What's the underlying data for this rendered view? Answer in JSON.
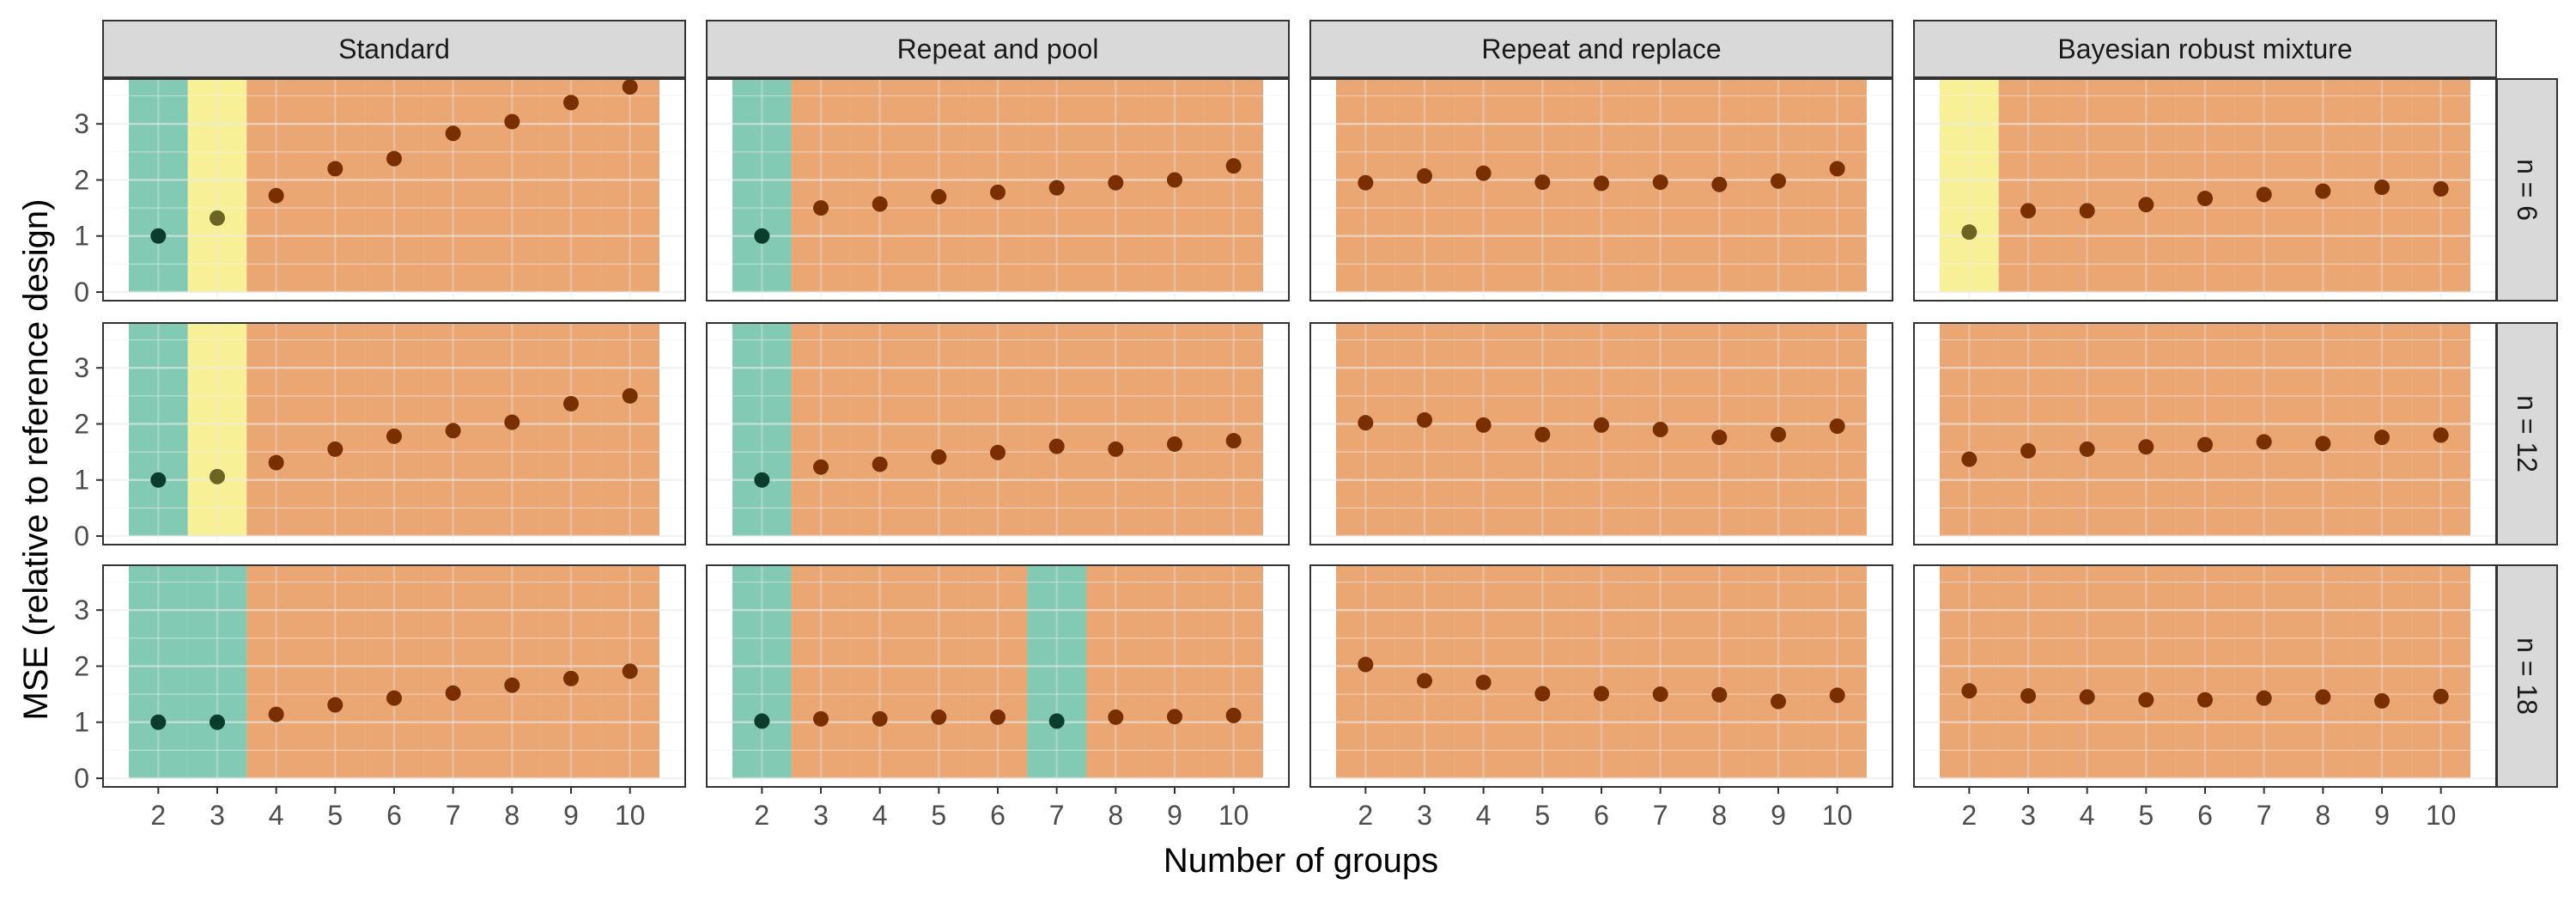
{
  "chart_data": {
    "type": "scatter",
    "xlabel": "Number of groups",
    "ylabel": "MSE (relative to reference design)",
    "xlim": [
      1.5,
      10.5
    ],
    "ylim": [
      0,
      3.8
    ],
    "x_ticks": [
      2,
      3,
      4,
      5,
      6,
      7,
      8,
      9,
      10
    ],
    "y_ticks": [
      0,
      1,
      2,
      3
    ],
    "grid": true,
    "columns": [
      "Standard",
      "Repeat and pool",
      "Repeat and replace",
      "Bayesian robust mixture"
    ],
    "rows": [
      "n = 6",
      "n = 12",
      "n = 18"
    ],
    "category_colors": {
      "green": "#1b9e77",
      "yellow": "#f0e442",
      "orange": "#d95f02"
    },
    "point_color": "#7a2f00",
    "highlight_point_color": "#0a3d2b",
    "panels": [
      {
        "row": 0,
        "col": 0,
        "x": [
          2,
          3,
          4,
          5,
          6,
          7,
          8,
          9,
          10
        ],
        "y": [
          1.0,
          1.32,
          1.72,
          2.2,
          2.38,
          2.83,
          3.04,
          3.38,
          3.66
        ],
        "category": [
          "green",
          "yellow",
          "orange",
          "orange",
          "orange",
          "orange",
          "orange",
          "orange",
          "orange"
        ]
      },
      {
        "row": 0,
        "col": 1,
        "x": [
          2,
          3,
          4,
          5,
          6,
          7,
          8,
          9,
          10
        ],
        "y": [
          1.0,
          1.5,
          1.57,
          1.7,
          1.78,
          1.86,
          1.95,
          2.0,
          2.25
        ],
        "category": [
          "green",
          "orange",
          "orange",
          "orange",
          "orange",
          "orange",
          "orange",
          "orange",
          "orange"
        ]
      },
      {
        "row": 0,
        "col": 2,
        "x": [
          2,
          3,
          4,
          5,
          6,
          7,
          8,
          9,
          10
        ],
        "y": [
          1.95,
          2.07,
          2.12,
          1.96,
          1.94,
          1.96,
          1.92,
          1.98,
          2.2
        ],
        "category": [
          "orange",
          "orange",
          "orange",
          "orange",
          "orange",
          "orange",
          "orange",
          "orange",
          "orange"
        ]
      },
      {
        "row": 0,
        "col": 3,
        "x": [
          2,
          3,
          4,
          5,
          6,
          7,
          8,
          9,
          10
        ],
        "y": [
          1.07,
          1.45,
          1.45,
          1.56,
          1.67,
          1.74,
          1.8,
          1.87,
          1.84
        ],
        "category": [
          "yellow",
          "orange",
          "orange",
          "orange",
          "orange",
          "orange",
          "orange",
          "orange",
          "orange"
        ]
      },
      {
        "row": 1,
        "col": 0,
        "x": [
          2,
          3,
          4,
          5,
          6,
          7,
          8,
          9,
          10
        ],
        "y": [
          1.0,
          1.06,
          1.31,
          1.55,
          1.78,
          1.88,
          2.03,
          2.36,
          2.5
        ],
        "category": [
          "green",
          "yellow",
          "orange",
          "orange",
          "orange",
          "orange",
          "orange",
          "orange",
          "orange"
        ]
      },
      {
        "row": 1,
        "col": 1,
        "x": [
          2,
          3,
          4,
          5,
          6,
          7,
          8,
          9,
          10
        ],
        "y": [
          1.0,
          1.23,
          1.28,
          1.41,
          1.49,
          1.6,
          1.55,
          1.64,
          1.7
        ],
        "category": [
          "green",
          "orange",
          "orange",
          "orange",
          "orange",
          "orange",
          "orange",
          "orange",
          "orange"
        ]
      },
      {
        "row": 1,
        "col": 2,
        "x": [
          2,
          3,
          4,
          5,
          6,
          7,
          8,
          9,
          10
        ],
        "y": [
          2.02,
          2.07,
          1.98,
          1.81,
          1.98,
          1.9,
          1.76,
          1.81,
          1.96
        ],
        "category": [
          "orange",
          "orange",
          "orange",
          "orange",
          "orange",
          "orange",
          "orange",
          "orange",
          "orange"
        ]
      },
      {
        "row": 1,
        "col": 3,
        "x": [
          2,
          3,
          4,
          5,
          6,
          7,
          8,
          9,
          10
        ],
        "y": [
          1.37,
          1.52,
          1.55,
          1.59,
          1.63,
          1.68,
          1.65,
          1.76,
          1.8
        ],
        "category": [
          "orange",
          "orange",
          "orange",
          "orange",
          "orange",
          "orange",
          "orange",
          "orange",
          "orange"
        ]
      },
      {
        "row": 2,
        "col": 0,
        "x": [
          2,
          3,
          4,
          5,
          6,
          7,
          8,
          9,
          10
        ],
        "y": [
          1.0,
          1.0,
          1.14,
          1.31,
          1.43,
          1.52,
          1.66,
          1.78,
          1.91
        ],
        "category": [
          "green",
          "green",
          "orange",
          "orange",
          "orange",
          "orange",
          "orange",
          "orange",
          "orange"
        ]
      },
      {
        "row": 2,
        "col": 1,
        "x": [
          2,
          3,
          4,
          5,
          6,
          7,
          8,
          9,
          10
        ],
        "y": [
          1.02,
          1.06,
          1.06,
          1.09,
          1.09,
          1.02,
          1.09,
          1.1,
          1.12
        ],
        "category": [
          "green",
          "orange",
          "orange",
          "orange",
          "orange",
          "green",
          "orange",
          "orange",
          "orange"
        ]
      },
      {
        "row": 2,
        "col": 2,
        "x": [
          2,
          3,
          4,
          5,
          6,
          7,
          8,
          9,
          10
        ],
        "y": [
          2.03,
          1.74,
          1.71,
          1.51,
          1.51,
          1.5,
          1.49,
          1.37,
          1.48
        ],
        "category": [
          "orange",
          "orange",
          "orange",
          "orange",
          "orange",
          "orange",
          "orange",
          "orange",
          "orange"
        ]
      },
      {
        "row": 2,
        "col": 3,
        "x": [
          2,
          3,
          4,
          5,
          6,
          7,
          8,
          9,
          10
        ],
        "y": [
          1.56,
          1.47,
          1.45,
          1.4,
          1.4,
          1.43,
          1.45,
          1.38,
          1.46
        ],
        "category": [
          "orange",
          "orange",
          "orange",
          "orange",
          "orange",
          "orange",
          "orange",
          "orange",
          "orange"
        ]
      }
    ]
  }
}
